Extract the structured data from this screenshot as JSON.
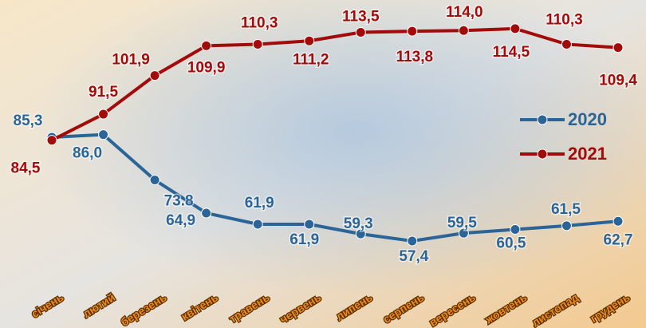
{
  "chart_data": {
    "type": "line",
    "categories": [
      "січень",
      "лютий",
      "березень",
      "квітень",
      "травень",
      "червень",
      "липень",
      "серпень",
      "вересень",
      "жовтень",
      "листопад",
      "грудень"
    ],
    "series": [
      {
        "name": "2020",
        "color": "#2b6598",
        "values": [
          85.3,
          86.0,
          73.8,
          64.9,
          61.9,
          61.9,
          59.3,
          57.4,
          59.5,
          60.5,
          61.5,
          62.7
        ],
        "value_labels": [
          "85,3",
          "86,0",
          "73.8",
          "64,9",
          "61,9",
          "61,9",
          "59,3",
          "57,4",
          "59,5",
          "60,5",
          "61,5",
          "62,7"
        ]
      },
      {
        "name": "2021",
        "color": "#a30a0a",
        "values": [
          84.5,
          91.5,
          101.9,
          109.9,
          110.3,
          111.2,
          113.5,
          113.8,
          114.0,
          114.5,
          110.3,
          109.4
        ],
        "value_labels": [
          "84,5",
          "91,5",
          "101,9",
          "109,9",
          "110,3",
          "111,2",
          "113,5",
          "113,8",
          "114,0",
          "114,5",
          "110,3",
          "109,4"
        ]
      }
    ],
    "ylim": [
      34,
      122.2
    ]
  }
}
